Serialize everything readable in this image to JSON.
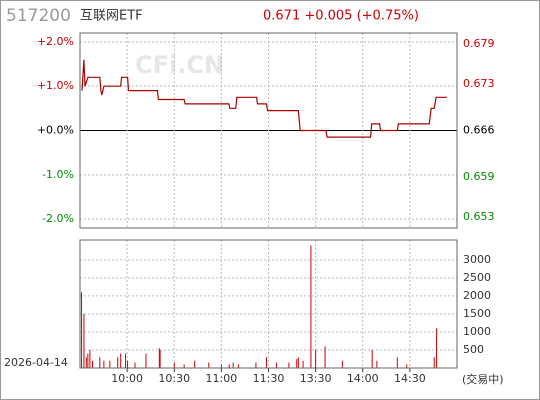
{
  "chart_data": [
    {
      "type": "line",
      "title": "517200",
      "subtitle": "互联网ETF",
      "annotation": "0.671 +0.005 (+0.75%)",
      "watermark": "CFi.CN",
      "color": "#aa0000",
      "x": [
        1.3,
        2.5,
        3.2,
        5,
        12.6,
        13.3,
        13.9,
        15.2,
        25.9,
        26.5,
        30.3,
        30.9,
        49.3,
        49.9,
        66.3,
        67,
        94.7,
        95.4,
        99.2,
        99.8,
        112.4,
        113,
        118.7,
        119.4,
        139,
        140.2,
        156.6,
        157.3,
        185,
        185.7,
        190.7,
        191.3,
        202,
        202.7,
        222.3,
        223.6,
        225.5,
        226.7,
        233.7
      ],
      "values": [
        0.9,
        1.6,
        1.0,
        1.2,
        1.2,
        0.9,
        0.8,
        1.0,
        1.0,
        1.2,
        1.2,
        0.9,
        0.9,
        0.7,
        0.7,
        0.6,
        0.6,
        0.5,
        0.5,
        0.75,
        0.75,
        0.6,
        0.6,
        0.45,
        0.45,
        0.0,
        0.0,
        -0.15,
        -0.15,
        0.15,
        0.15,
        0.0,
        0.0,
        0.15,
        0.15,
        0.5,
        0.5,
        0.75,
        0.75
      ],
      "xlim": [
        0,
        240
      ],
      "xticks": [
        {
          "value": 30,
          "label": "10:00"
        },
        {
          "value": 60,
          "label": "10:30"
        },
        {
          "value": 90,
          "label": "11:00"
        },
        {
          "value": 120,
          "label": "11:30"
        },
        {
          "value": 150,
          "label": "13:30"
        },
        {
          "value": 180,
          "label": "14:00"
        },
        {
          "value": 210,
          "label": "14:30"
        }
      ],
      "ylim": [
        -2.2,
        2.2
      ],
      "yticks": [
        {
          "value": 2,
          "label": "+2.0%"
        },
        {
          "value": 1,
          "label": "+1.0%"
        },
        {
          "value": 0,
          "label": "+0.0%"
        },
        {
          "value": -1,
          "label": "-1.0%"
        },
        {
          "value": -2,
          "label": "-2.0%"
        }
      ],
      "y2lim": [
        0.651348,
        0.680652
      ],
      "y2ticks": [
        0.679,
        0.673,
        0.666,
        0.659,
        0.653
      ],
      "grid": true
    },
    {
      "type": "bar",
      "date_label": "2026-04-14",
      "status": "(交易中)",
      "color": "#cc0000",
      "x": [
        1,
        2.5,
        4,
        5,
        6.3,
        8,
        12.6,
        15.2,
        19,
        24,
        25.9,
        29,
        30.3,
        35,
        42,
        50.5,
        51,
        60,
        66.3,
        73,
        82,
        90,
        95,
        97.5,
        101,
        112,
        118.7,
        125,
        133,
        138,
        139,
        142,
        147,
        150,
        156,
        167,
        186,
        189,
        202,
        208,
        225.5,
        227
      ],
      "values": [
        2100,
        1500,
        300,
        400,
        500,
        200,
        300,
        200,
        200,
        300,
        400,
        400,
        200,
        150,
        400,
        550,
        500,
        150,
        100,
        200,
        150,
        100,
        100,
        150,
        100,
        150,
        300,
        150,
        150,
        250,
        300,
        200,
        3400,
        500,
        600,
        200,
        500,
        200,
        300,
        100,
        300,
        1100
      ],
      "xlim": [
        0,
        240
      ],
      "ylim": [
        0,
        3550
      ],
      "yticks": [
        3000,
        2500,
        2000,
        1500,
        1000,
        500
      ],
      "grid": true
    }
  ]
}
